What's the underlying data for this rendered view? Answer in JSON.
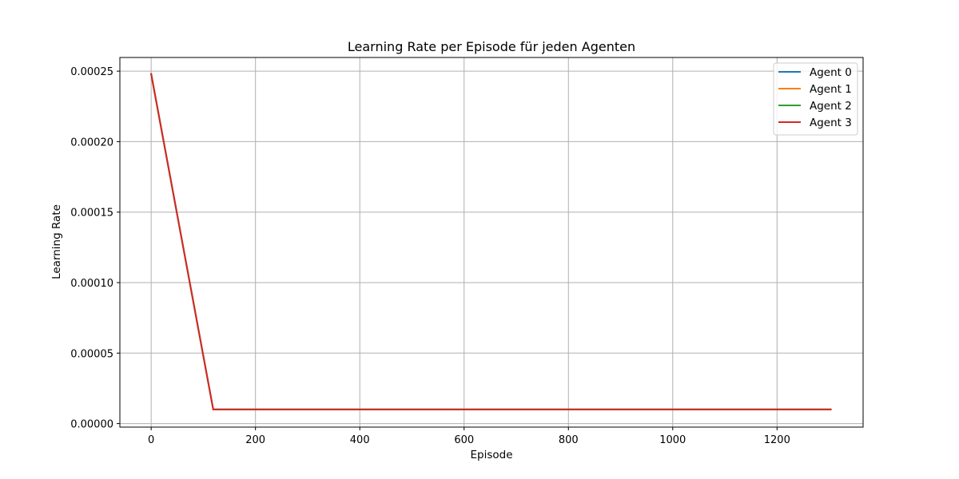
{
  "chart_data": {
    "type": "line",
    "title": "Learning Rate per Episode für jeden Agenten",
    "xlabel": "Episode",
    "ylabel": "Learning Rate",
    "xlim": [
      -60,
      1365
    ],
    "ylim": [
      -2.5e-06,
      0.0002597
    ],
    "xticks": [
      0,
      200,
      400,
      600,
      800,
      1000,
      1200
    ],
    "xtick_labels": [
      "0",
      "200",
      "400",
      "600",
      "800",
      "1000",
      "1200"
    ],
    "yticks": [
      0,
      5e-05,
      0.0001,
      0.00015,
      0.0002,
      0.00025
    ],
    "ytick_labels": [
      "0.00000",
      "0.00005",
      "0.00010",
      "0.00015",
      "0.00020",
      "0.00025"
    ],
    "grid": true,
    "legend_position": "top-right",
    "series": [
      {
        "name": "Agent 0",
        "color": "#1f77b4",
        "x": [
          0,
          119,
          1303
        ],
        "y": [
          0.000248,
          1e-05,
          1e-05
        ]
      },
      {
        "name": "Agent 1",
        "color": "#ff7f0e",
        "x": [
          0,
          119,
          1303
        ],
        "y": [
          0.000248,
          1e-05,
          1e-05
        ]
      },
      {
        "name": "Agent 2",
        "color": "#2ca02c",
        "x": [
          0,
          119,
          1303
        ],
        "y": [
          0.000248,
          1e-05,
          1e-05
        ]
      },
      {
        "name": "Agent 3",
        "color": "#d62728",
        "x": [
          0,
          119,
          1303
        ],
        "y": [
          0.000248,
          1e-05,
          1e-05
        ]
      }
    ]
  }
}
